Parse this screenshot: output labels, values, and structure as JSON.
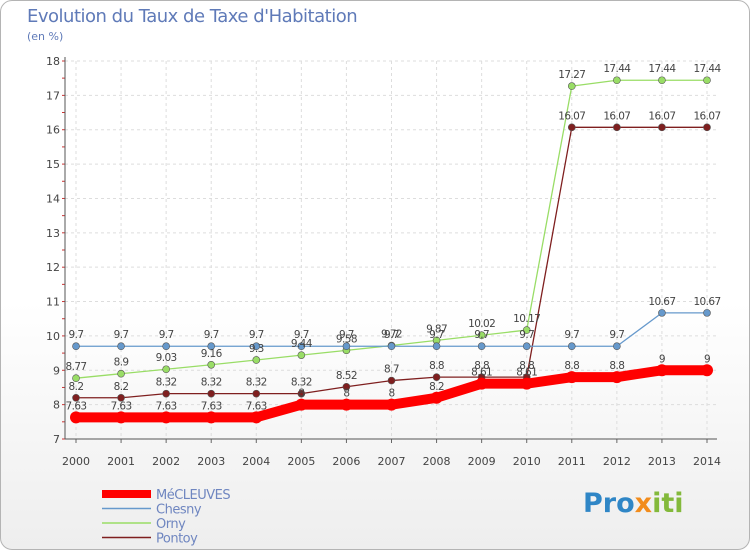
{
  "chart_data": {
    "type": "line",
    "title": "Evolution du Taux de Taxe d'Habitation",
    "subtitle": "(en %)",
    "xlabel": "",
    "ylabel": "",
    "x": [
      "2000",
      "2001",
      "2002",
      "2003",
      "2004",
      "2005",
      "2006",
      "2007",
      "2008",
      "2009",
      "2010",
      "2011",
      "2012",
      "2013",
      "2014"
    ],
    "ylim": [
      7,
      18
    ],
    "yticks": [
      7,
      8,
      9,
      10,
      11,
      12,
      13,
      14,
      15,
      16,
      17,
      18
    ],
    "grid": true,
    "legend_position": "bottom-left",
    "series": [
      {
        "name": "MéCLEUVES",
        "color": "#ff0000",
        "values": [
          7.63,
          7.63,
          7.63,
          7.63,
          7.63,
          8,
          8,
          8,
          8.2,
          8.61,
          8.61,
          8.8,
          8.8,
          9,
          9
        ],
        "labels": [
          "7.63",
          "7.63",
          "7.63",
          "7.63",
          "7.63",
          "8",
          "8",
          "8",
          "8.2",
          "8.61",
          "8.61",
          "8.8",
          "8.8",
          "9",
          "9"
        ]
      },
      {
        "name": "Chesny",
        "color": "#6699cc",
        "values": [
          9.7,
          9.7,
          9.7,
          9.7,
          9.7,
          9.7,
          9.7,
          9.7,
          9.7,
          9.7,
          9.7,
          9.7,
          9.7,
          10.67,
          10.67
        ],
        "labels": [
          "9.7",
          "9.7",
          "9.7",
          "9.7",
          "9.7",
          "9.7",
          "9.7",
          "9.7",
          "9.7",
          "9.7",
          "9.7",
          "9.7",
          "9.7",
          "10.67",
          "10.67"
        ]
      },
      {
        "name": "Orny",
        "color": "#99dd66",
        "values": [
          8.77,
          8.9,
          9.03,
          9.16,
          9.3,
          9.44,
          9.58,
          9.72,
          9.87,
          10.02,
          10.17,
          17.27,
          17.44,
          17.44,
          17.44
        ],
        "labels": [
          "8.77",
          "8.9",
          "9.03",
          "9.16",
          "9.3",
          "9.44",
          "9.58",
          "9.72",
          "9.87",
          "10.02",
          "10.17",
          "17.27",
          "17.44",
          "17.44",
          "17.44"
        ]
      },
      {
        "name": "Pontoy",
        "color": "#7f1f1f",
        "values": [
          8.2,
          8.2,
          8.32,
          8.32,
          8.32,
          8.32,
          8.52,
          8.7,
          8.8,
          8.8,
          8.8,
          16.07,
          16.07,
          16.07,
          16.07
        ],
        "labels": [
          "8.2",
          "8.2",
          "8.32",
          "8.32",
          "8.32",
          "8.32",
          "8.52",
          "8.7",
          "8.8",
          "8.8",
          "8.8",
          "16.07",
          "16.07",
          "16.07",
          "16.07"
        ]
      }
    ]
  },
  "logo": {
    "parts": [
      "Pro",
      "x",
      "iti"
    ]
  }
}
